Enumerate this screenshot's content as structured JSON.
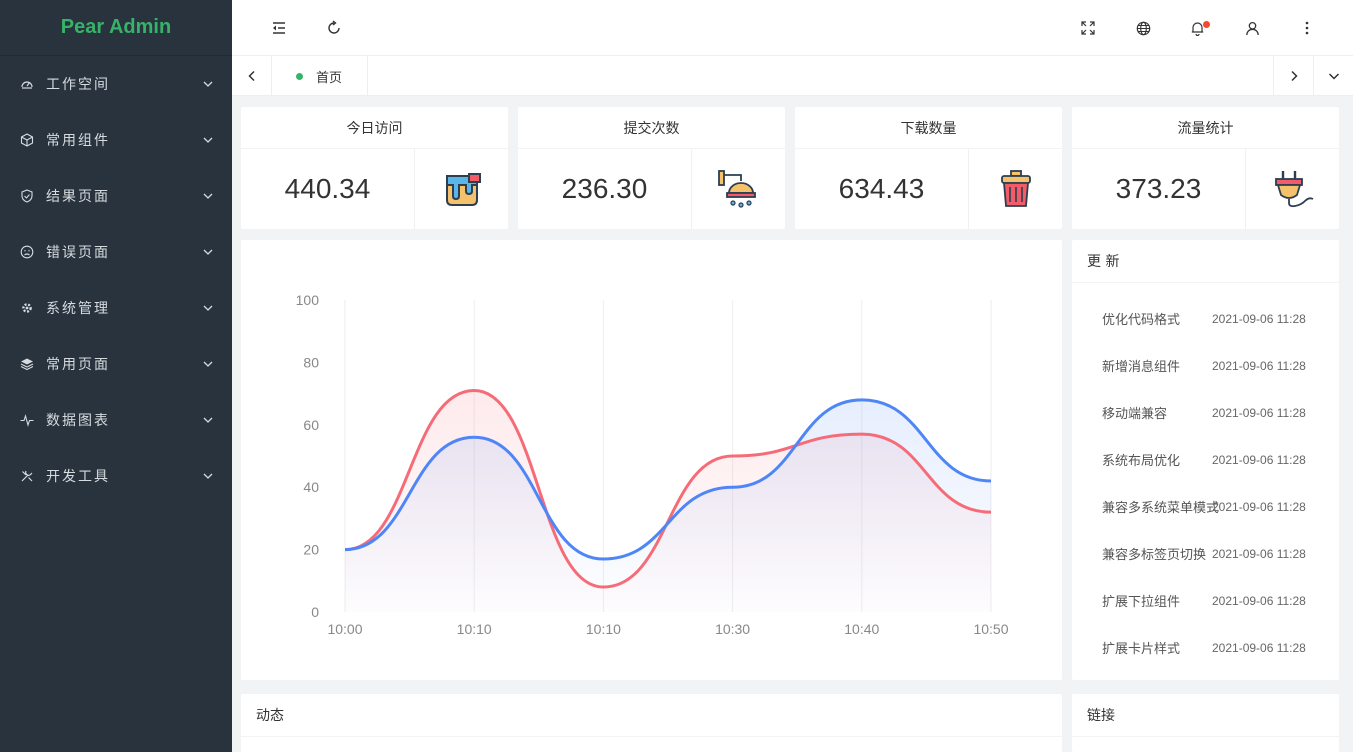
{
  "app": {
    "logo": "Pear Admin"
  },
  "sidebar": {
    "items": [
      {
        "label": "工作空间",
        "icon": "dashboard-icon"
      },
      {
        "label": "常用组件",
        "icon": "component-box-icon"
      },
      {
        "label": "结果页面",
        "icon": "shield-check-icon"
      },
      {
        "label": "错误页面",
        "icon": "sad-face-icon"
      },
      {
        "label": "系统管理",
        "icon": "gear-icon"
      },
      {
        "label": "常用页面",
        "icon": "layers-icon"
      },
      {
        "label": "数据图表",
        "icon": "pulse-icon"
      },
      {
        "label": "开发工具",
        "icon": "tools-icon"
      }
    ]
  },
  "header": {
    "icons": [
      "menu-fold-icon",
      "refresh-icon",
      "fullscreen-icon",
      "globe-icon",
      "bell-icon",
      "user-icon",
      "more-vertical-icon"
    ]
  },
  "tabs": {
    "home_label": "首页"
  },
  "stats": [
    {
      "title": "今日访问",
      "value": "440.34",
      "icon": "paint-bucket-icon"
    },
    {
      "title": "提交次数",
      "value": "236.30",
      "icon": "shower-icon"
    },
    {
      "title": "下载数量",
      "value": "634.43",
      "icon": "trash-bin-icon"
    },
    {
      "title": "流量统计",
      "value": "373.23",
      "icon": "plug-icon"
    }
  ],
  "chart_data": {
    "type": "area",
    "categories": [
      "10:00",
      "10:10",
      "10:10",
      "10:30",
      "10:40",
      "10:50"
    ],
    "ylim": [
      0,
      100
    ],
    "yticks": [
      0,
      20,
      40,
      60,
      80,
      100
    ],
    "grid": "vertical",
    "series": [
      {
        "values": [
          20,
          71,
          8,
          50,
          57,
          32
        ],
        "color": "#f56c78"
      },
      {
        "values": [
          20,
          56,
          17,
          40,
          68,
          42
        ],
        "color": "#4f86f7"
      }
    ]
  },
  "updates": {
    "title": "更 新",
    "items": [
      {
        "title": "优化代码格式",
        "time": "2021-09-06 11:28"
      },
      {
        "title": "新增消息组件",
        "time": "2021-09-06 11:28"
      },
      {
        "title": "移动端兼容",
        "time": "2021-09-06 11:28"
      },
      {
        "title": "系统布局优化",
        "time": "2021-09-06 11:28"
      },
      {
        "title": "兼容多系统菜单模式",
        "time": "2021-09-06 11:28"
      },
      {
        "title": "兼容多标签页切换",
        "time": "2021-09-06 11:28"
      },
      {
        "title": "扩展下拉组件",
        "time": "2021-09-06 11:28"
      },
      {
        "title": "扩展卡片样式",
        "time": "2021-09-06 11:28"
      }
    ]
  },
  "dynamics": {
    "title": "动态"
  },
  "links": {
    "title": "链接"
  }
}
